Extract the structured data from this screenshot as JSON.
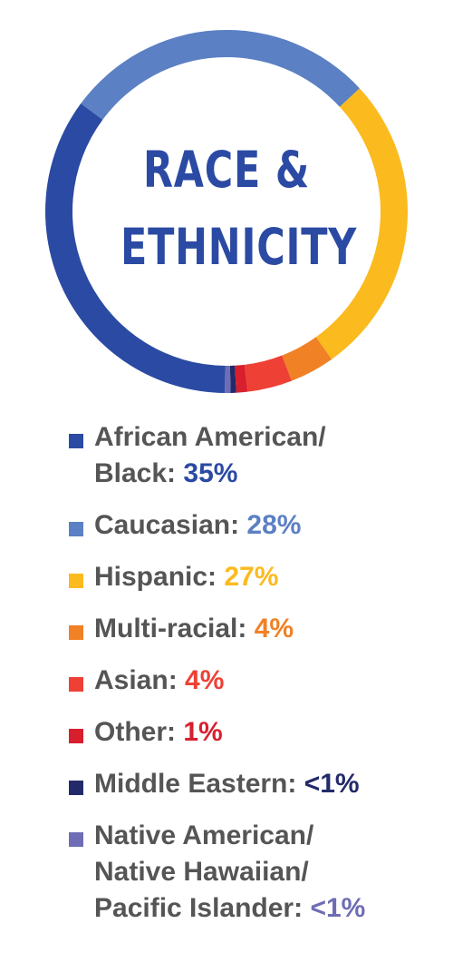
{
  "chart_data": {
    "type": "pie",
    "title_lines": [
      "RACE &",
      "ETHNICITY"
    ],
    "slices": [
      {
        "label": "African American/ Black",
        "value": 35,
        "value_text": "35%",
        "color": "#2b4aa3"
      },
      {
        "label": "Caucasian",
        "value": 28,
        "value_text": "28%",
        "color": "#5b80c3"
      },
      {
        "label": "Hispanic",
        "value": 27,
        "value_text": "27%",
        "color": "#fbba1e"
      },
      {
        "label": "Multi-racial",
        "value": 4,
        "value_text": "4%",
        "color": "#f08125"
      },
      {
        "label": "Asian",
        "value": 4,
        "value_text": "4%",
        "color": "#ee4035"
      },
      {
        "label": "Other",
        "value": 1,
        "value_text": "1%",
        "color": "#d81f2e"
      },
      {
        "label": "Middle Eastern",
        "value": 0.5,
        "value_text": "<1%",
        "color": "#232a69"
      },
      {
        "label": "Native American/ Native Hawaiian/ Pacific Islander",
        "value": 0.5,
        "value_text": "<1%",
        "color": "#6e6db5"
      }
    ],
    "legend_placement": "bottom"
  },
  "legend": [
    {
      "lines": [
        "African American/",
        "Black:"
      ],
      "value": "35%",
      "swatch": "#2b4aa3",
      "value_color": "#2b4aa3"
    },
    {
      "lines": [
        "Caucasian:"
      ],
      "value": "28%",
      "swatch": "#5b80c3",
      "value_color": "#5b80c3"
    },
    {
      "lines": [
        "Hispanic:"
      ],
      "value": "27%",
      "swatch": "#fbba1e",
      "value_color": "#fbba1e"
    },
    {
      "lines": [
        "Multi-racial:"
      ],
      "value": "4%",
      "swatch": "#f08125",
      "value_color": "#f08125"
    },
    {
      "lines": [
        "Asian:"
      ],
      "value": "4%",
      "swatch": "#ee4035",
      "value_color": "#ee4035"
    },
    {
      "lines": [
        "Other:"
      ],
      "value": "1%",
      "swatch": "#d81f2e",
      "value_color": "#d81f2e"
    },
    {
      "lines": [
        "Middle Eastern:"
      ],
      "value": "<1%",
      "swatch": "#232a69",
      "value_color": "#232a69"
    },
    {
      "lines": [
        "Native American/",
        "Native Hawaiian/",
        "Pacific Islander:"
      ],
      "value": "<1%",
      "swatch": "#6e6db5",
      "value_color": "#6e6db5"
    }
  ]
}
